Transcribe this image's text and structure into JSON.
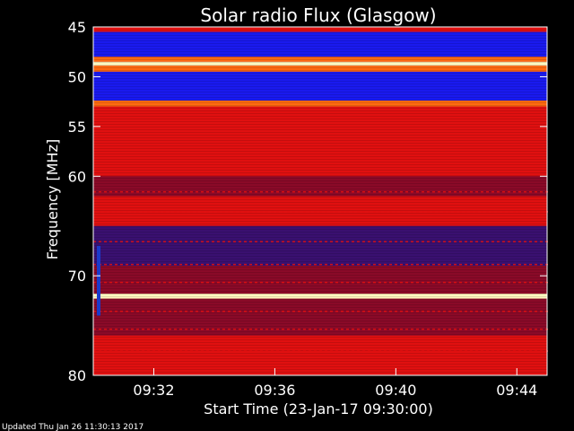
{
  "chart_data": {
    "type": "heatmap",
    "title": "Solar radio Flux (Glasgow)",
    "ylabel": "Frequency [MHz]",
    "xlabel": "Start Time (23-Jan-17 09:30:00)",
    "yticks": [
      45,
      50,
      55,
      60,
      70,
      80
    ],
    "ylim": [
      45,
      80
    ],
    "xticks": [
      "09:32",
      "09:36",
      "09:40",
      "09:44"
    ],
    "xtick_minutes": [
      2,
      6,
      10,
      14
    ],
    "xlim_minutes": [
      0,
      15
    ],
    "grid": false,
    "bands": [
      {
        "from": 45.0,
        "to": 45.5,
        "level": "red"
      },
      {
        "from": 45.5,
        "to": 48.0,
        "level": "blue"
      },
      {
        "from": 48.0,
        "to": 48.5,
        "level": "orange"
      },
      {
        "from": 48.5,
        "to": 48.9,
        "level": "peak"
      },
      {
        "from": 48.9,
        "to": 49.5,
        "level": "orange"
      },
      {
        "from": 49.5,
        "to": 52.4,
        "level": "blue"
      },
      {
        "from": 52.4,
        "to": 53.0,
        "level": "orange"
      },
      {
        "from": 53.0,
        "to": 60.0,
        "level": "red"
      },
      {
        "from": 60.0,
        "to": 62.0,
        "level": "darkred"
      },
      {
        "from": 62.0,
        "to": 65.0,
        "level": "red"
      },
      {
        "from": 65.0,
        "to": 69.0,
        "level": "purple"
      },
      {
        "from": 69.0,
        "to": 71.8,
        "level": "darkred"
      },
      {
        "from": 71.8,
        "to": 72.3,
        "level": "peak"
      },
      {
        "from": 72.3,
        "to": 76.0,
        "level": "darkred"
      },
      {
        "from": 76.0,
        "to": 80.0,
        "level": "red"
      }
    ],
    "colors": {
      "blue": "#1a1aee",
      "red": "#e01010",
      "darkred": "#8a0a28",
      "purple": "#3a1070",
      "orange": "#ff6a10",
      "peak": "#fff8c0"
    }
  },
  "footer": {
    "updated": "Updated Thu Jan 26 11:30:13 2017"
  }
}
